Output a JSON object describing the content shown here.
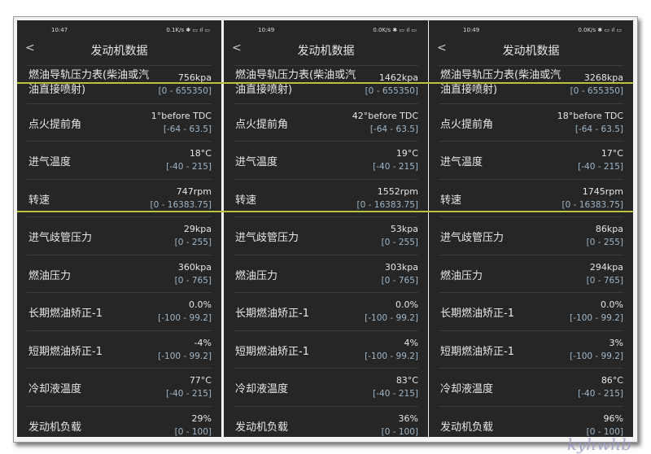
{
  "title": "发动机数据",
  "back_icon": "chevron-left-icon",
  "panels": [
    {
      "time": "10:47",
      "speed": "0.1K/s",
      "values": [
        "756kpa",
        "1°before TDC",
        "18°C",
        "747rpm",
        "29kpa",
        "360kpa",
        "0.0%",
        "-4%",
        "77°C",
        "29%"
      ]
    },
    {
      "time": "10:49",
      "speed": "0.0K/s",
      "values": [
        "1462kpa",
        "42°before TDC",
        "19°C",
        "1552rpm",
        "53kpa",
        "303kpa",
        "0.0%",
        "4%",
        "83°C",
        "36%"
      ]
    },
    {
      "time": "10:49",
      "speed": "0.0K/s",
      "values": [
        "3268kpa",
        "18°before TDC",
        "17°C",
        "1745rpm",
        "86kpa",
        "294kpa",
        "0.0%",
        "3%",
        "86°C",
        "96%"
      ]
    }
  ],
  "params": [
    {
      "name": "燃油导轨压力表(柴油或汽油直接喷射)",
      "range": "[0 - 655350]"
    },
    {
      "name": "点火提前角",
      "range": "[-64 - 63.5]"
    },
    {
      "name": "进气温度",
      "range": "[-40 - 215]"
    },
    {
      "name": "转速",
      "range": "[0 - 16383.75]"
    },
    {
      "name": "进气歧管压力",
      "range": "[0 - 255]"
    },
    {
      "name": "燃油压力",
      "range": "[0 - 765]"
    },
    {
      "name": "长期燃油矫正-1",
      "range": "[-100 - 99.2]"
    },
    {
      "name": "短期燃油矫正-1",
      "range": "[-100 - 99.2]"
    },
    {
      "name": "冷却液温度",
      "range": "[-40 - 215]"
    },
    {
      "name": "发动机负载",
      "range": "[0 - 100]"
    }
  ],
  "highlight_color": "#b8c43a",
  "watermark": "kyhwhb"
}
